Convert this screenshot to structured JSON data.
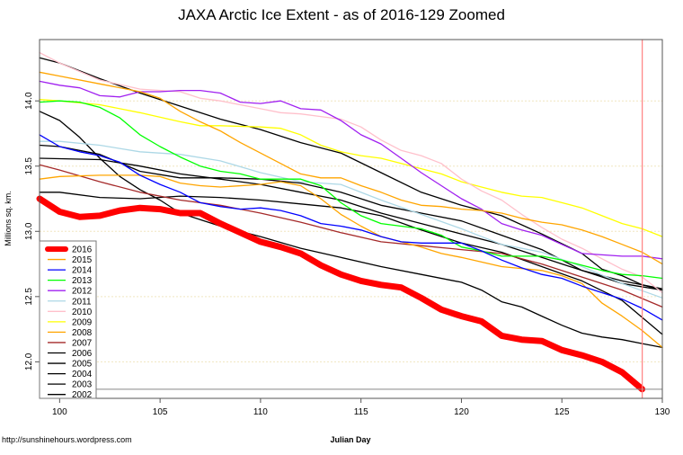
{
  "chart_data": {
    "type": "line",
    "title": "JAXA Arctic Ice Extent - as of 2016-129 Zoomed",
    "xlabel": "Julian Day",
    "ylabel": "Millions sq. km.",
    "xlim": [
      99,
      130
    ],
    "ylim": [
      11.72,
      14.47
    ],
    "x_ticks": [
      100,
      105,
      110,
      115,
      120,
      125,
      130
    ],
    "y_ticks": [
      "12.0",
      "12.5",
      "13.0",
      "13.5",
      "14.0"
    ],
    "grid": "horizontal dotted",
    "legend_position": "bottom-left",
    "marker_day": 129,
    "marker_day_color": "#ff8080",
    "current_value_line": 11.79,
    "series": [
      {
        "name": "2002",
        "color": "#000000",
        "x": [
          99,
          102,
          104,
          106,
          108,
          110,
          112,
          114,
          116,
          118,
          120,
          122,
          124,
          126,
          128,
          130
        ],
        "values": [
          13.56,
          13.55,
          13.5,
          13.44,
          13.4,
          13.36,
          13.3,
          13.24,
          13.14,
          13.06,
          12.98,
          12.9,
          12.8,
          12.7,
          12.62,
          12.56
        ]
      },
      {
        "name": "2003",
        "color": "#000000",
        "x": [
          99,
          100,
          102,
          104,
          106,
          108,
          110,
          112,
          114,
          116,
          118,
          120,
          122,
          124,
          126,
          128,
          130
        ],
        "values": [
          13.3,
          13.3,
          13.26,
          13.25,
          13.27,
          13.26,
          13.24,
          13.21,
          13.18,
          13.12,
          13.01,
          12.91,
          12.84,
          12.73,
          12.62,
          12.47,
          12.21
        ]
      },
      {
        "name": "2004",
        "color": "#000000",
        "x": [
          99,
          100,
          102,
          104,
          106,
          108,
          110,
          112,
          114,
          116,
          118,
          120,
          122,
          124,
          126,
          128,
          130
        ],
        "values": [
          13.66,
          13.65,
          13.59,
          13.46,
          13.41,
          13.41,
          13.4,
          13.37,
          13.3,
          13.2,
          13.14,
          13.08,
          12.97,
          12.86,
          12.7,
          12.6,
          12.55
        ]
      },
      {
        "name": "2005",
        "color": "#000000",
        "x": [
          99,
          100,
          101,
          102,
          103,
          104,
          105,
          106,
          107,
          108,
          110,
          112,
          114,
          116,
          118,
          120,
          121,
          122,
          123,
          124,
          125,
          126,
          127,
          128,
          129,
          130
        ],
        "values": [
          13.92,
          13.85,
          13.72,
          13.56,
          13.42,
          13.32,
          13.24,
          13.14,
          13.09,
          13.04,
          12.96,
          12.87,
          12.8,
          12.73,
          12.67,
          12.61,
          12.55,
          12.46,
          12.42,
          12.35,
          12.28,
          12.22,
          12.19,
          12.17,
          12.14,
          12.11
        ]
      },
      {
        "name": "2006",
        "color": "#000000",
        "x": [
          99,
          100,
          102,
          104,
          106,
          108,
          110,
          112,
          114,
          116,
          118,
          120,
          122,
          124,
          126,
          127,
          128,
          129,
          130
        ],
        "values": [
          14.33,
          14.29,
          14.17,
          14.06,
          13.96,
          13.86,
          13.78,
          13.68,
          13.6,
          13.45,
          13.3,
          13.2,
          13.12,
          12.98,
          12.83,
          12.71,
          12.66,
          12.59,
          12.55
        ]
      },
      {
        "name": "2007",
        "color": "#a52a2a",
        "x": [
          99,
          100,
          102,
          104,
          106,
          108,
          110,
          112,
          114,
          116,
          118,
          120,
          122,
          124,
          126,
          128,
          130
        ],
        "values": [
          13.51,
          13.47,
          13.38,
          13.3,
          13.24,
          13.2,
          13.14,
          13.07,
          12.99,
          12.92,
          12.89,
          12.86,
          12.83,
          12.75,
          12.65,
          12.55,
          12.42
        ]
      },
      {
        "name": "2008",
        "color": "#ffa500",
        "x": [
          99,
          100,
          102,
          104,
          105,
          106,
          107,
          108,
          110,
          111,
          112,
          113,
          114,
          115,
          116,
          117,
          118,
          119,
          120,
          122,
          124,
          125,
          126,
          127,
          128,
          129,
          130
        ],
        "values": [
          13.4,
          13.42,
          13.43,
          13.43,
          13.42,
          13.37,
          13.35,
          13.34,
          13.36,
          13.38,
          13.35,
          13.25,
          13.13,
          13.04,
          12.96,
          12.92,
          12.88,
          12.83,
          12.8,
          12.73,
          12.7,
          12.66,
          12.6,
          12.45,
          12.35,
          12.24,
          12.11
        ]
      },
      {
        "name": "2009",
        "color": "#ffff00",
        "x": [
          99,
          100,
          102,
          104,
          106,
          107,
          108,
          110,
          111,
          112,
          113,
          114,
          115,
          116,
          117,
          118,
          119,
          120,
          121,
          122,
          123,
          124,
          125,
          126,
          127,
          128,
          129,
          130
        ],
        "values": [
          14.01,
          14.0,
          13.97,
          13.91,
          13.84,
          13.81,
          13.81,
          13.8,
          13.79,
          13.74,
          13.66,
          13.61,
          13.58,
          13.56,
          13.52,
          13.48,
          13.44,
          13.38,
          13.34,
          13.3,
          13.27,
          13.26,
          13.22,
          13.18,
          13.12,
          13.06,
          13.02,
          12.96
        ]
      },
      {
        "name": "2010",
        "color": "#ffc0cb",
        "x": [
          99,
          100,
          102,
          104,
          106,
          107,
          108,
          110,
          111,
          112,
          113,
          114,
          115,
          116,
          117,
          118,
          119,
          120,
          121,
          122,
          123,
          124,
          125,
          126,
          127,
          128,
          129,
          130
        ],
        "values": [
          14.37,
          14.29,
          14.16,
          14.09,
          14.07,
          14.02,
          14.0,
          13.94,
          13.91,
          13.9,
          13.88,
          13.86,
          13.8,
          13.7,
          13.62,
          13.58,
          13.52,
          13.4,
          13.31,
          13.24,
          13.13,
          13.03,
          12.94,
          12.87,
          12.79,
          12.71,
          12.65,
          12.53
        ]
      },
      {
        "name": "2011",
        "color": "#add8e6",
        "x": [
          99,
          100,
          102,
          104,
          106,
          108,
          110,
          112,
          114,
          116,
          118,
          120,
          122,
          124,
          126,
          128,
          130
        ],
        "values": [
          13.69,
          13.69,
          13.66,
          13.61,
          13.59,
          13.54,
          13.45,
          13.38,
          13.36,
          13.24,
          13.13,
          13.02,
          12.9,
          12.84,
          12.73,
          12.6,
          12.49
        ]
      },
      {
        "name": "2012",
        "color": "#a020f0",
        "x": [
          99,
          100,
          101,
          102,
          103,
          104,
          105,
          106,
          107,
          108,
          109,
          110,
          111,
          112,
          113,
          114,
          115,
          116,
          117,
          118,
          119,
          120,
          121,
          122,
          123,
          124,
          125,
          126,
          127,
          128,
          129,
          130
        ],
        "values": [
          14.15,
          14.12,
          14.1,
          14.04,
          14.03,
          14.07,
          14.07,
          14.08,
          14.08,
          14.06,
          13.99,
          13.98,
          14.0,
          13.94,
          13.93,
          13.85,
          13.74,
          13.67,
          13.56,
          13.45,
          13.35,
          13.25,
          13.17,
          13.06,
          13.01,
          12.97,
          12.9,
          12.83,
          12.82,
          12.81,
          12.81,
          12.79
        ]
      },
      {
        "name": "2013",
        "color": "#00ff00",
        "x": [
          99,
          100,
          101,
          102,
          103,
          104,
          105,
          106,
          107,
          108,
          109,
          110,
          111,
          112,
          113,
          114,
          115,
          116,
          117,
          118,
          119,
          120,
          121,
          122,
          123,
          124,
          125,
          126,
          127,
          128,
          129,
          130
        ],
        "values": [
          13.99,
          14.0,
          13.99,
          13.95,
          13.87,
          13.74,
          13.65,
          13.57,
          13.5,
          13.46,
          13.44,
          13.4,
          13.4,
          13.4,
          13.35,
          13.22,
          13.12,
          13.06,
          13.04,
          13.02,
          12.97,
          12.88,
          12.85,
          12.81,
          12.81,
          12.81,
          12.78,
          12.74,
          12.7,
          12.67,
          12.66,
          12.64
        ]
      },
      {
        "name": "2014",
        "color": "#0000ff",
        "x": [
          99,
          100,
          101,
          102,
          103,
          104,
          105,
          106,
          107,
          108,
          109,
          110,
          111,
          112,
          113,
          114,
          115,
          116,
          117,
          118,
          119,
          120,
          121,
          122,
          123,
          124,
          125,
          126,
          127,
          128,
          129,
          130
        ],
        "values": [
          13.74,
          13.65,
          13.61,
          13.58,
          13.53,
          13.43,
          13.36,
          13.3,
          13.22,
          13.19,
          13.17,
          13.18,
          13.16,
          13.12,
          13.06,
          13.04,
          13.01,
          12.96,
          12.92,
          12.91,
          12.91,
          12.91,
          12.85,
          12.78,
          12.72,
          12.67,
          12.64,
          12.58,
          12.53,
          12.48,
          12.41,
          12.32
        ]
      },
      {
        "name": "2015",
        "color": "#ffa500",
        "x": [
          99,
          100,
          102,
          104,
          105,
          106,
          107,
          108,
          109,
          110,
          111,
          112,
          113,
          114,
          115,
          116,
          117,
          118,
          119,
          120,
          121,
          122,
          123,
          124,
          125,
          126,
          127,
          128,
          129,
          130
        ],
        "values": [
          14.22,
          14.19,
          14.13,
          14.07,
          14.02,
          13.92,
          13.84,
          13.77,
          13.68,
          13.6,
          13.52,
          13.44,
          13.41,
          13.41,
          13.35,
          13.3,
          13.24,
          13.2,
          13.19,
          13.17,
          13.16,
          13.14,
          13.1,
          13.07,
          13.05,
          13.01,
          12.96,
          12.9,
          12.84,
          12.75
        ]
      },
      {
        "name": "2016",
        "color": "#ff0000",
        "x": [
          99,
          100,
          101,
          102,
          103,
          104,
          105,
          106,
          107,
          108,
          109,
          110,
          111,
          112,
          113,
          114,
          115,
          116,
          117,
          118,
          119,
          120,
          121,
          122,
          123,
          124,
          125,
          126,
          127,
          128,
          129
        ],
        "values": [
          13.25,
          13.15,
          13.11,
          13.12,
          13.16,
          13.18,
          13.17,
          13.14,
          13.14,
          13.06,
          12.99,
          12.92,
          12.88,
          12.83,
          12.74,
          12.67,
          12.62,
          12.59,
          12.57,
          12.49,
          12.4,
          12.35,
          12.31,
          12.2,
          12.17,
          12.16,
          12.09,
          12.05,
          12.0,
          11.92,
          11.79
        ]
      }
    ]
  },
  "footer": {
    "url": "http://sunshinehours.wordpress.com"
  }
}
